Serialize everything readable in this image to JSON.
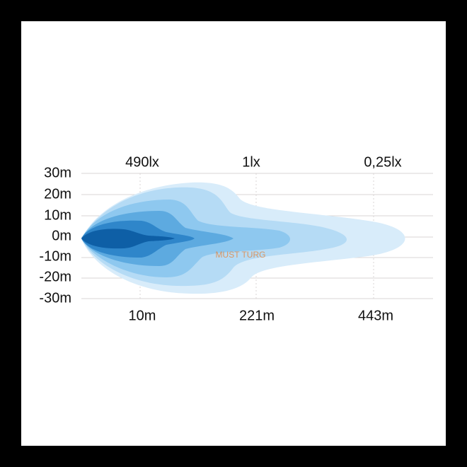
{
  "y_axis_labels": [
    "30m",
    "20m",
    "10m",
    "0m",
    "-10m",
    "-20m",
    "-30m"
  ],
  "lux_labels": [
    "490lx",
    "1lx",
    "0,25lx"
  ],
  "distance_labels": [
    "10m",
    "221m",
    "443m"
  ],
  "watermark": "MUST TURG"
}
